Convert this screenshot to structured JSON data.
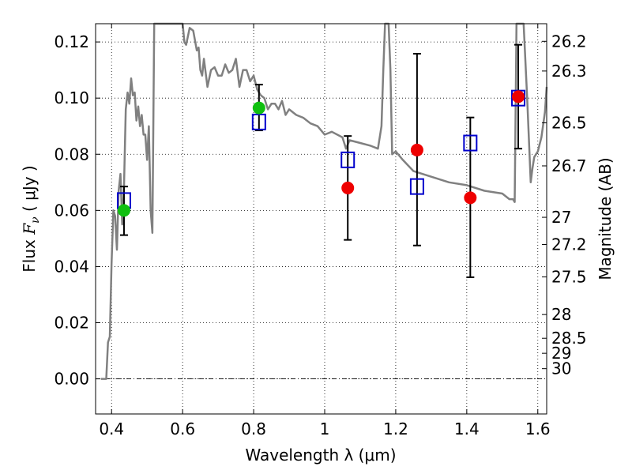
{
  "chart_data": {
    "type": "scatter",
    "xlabel": "Wavelength  λ (μm)",
    "ylabel_prefix": "Flux  ",
    "ylabel_var": "F",
    "ylabel_sub": "ν",
    "ylabel_suffix": "  ( μJy )",
    "ylabel_right": "Magnitude (AB)",
    "xlim": [
      0.355,
      1.625
    ],
    "ylim": [
      -0.0125,
      0.1265
    ],
    "grid": true,
    "x_ticks": [
      {
        "v": 0.4,
        "label": "0.4"
      },
      {
        "v": 0.6,
        "label": "0.6"
      },
      {
        "v": 0.8,
        "label": "0.8"
      },
      {
        "v": 1.0,
        "label": "1"
      },
      {
        "v": 1.2,
        "label": "1.2"
      },
      {
        "v": 1.4,
        "label": "1.4"
      },
      {
        "v": 1.6,
        "label": "1.6"
      }
    ],
    "y_ticks": [
      {
        "v": 0.0,
        "label": "0.00"
      },
      {
        "v": 0.02,
        "label": "0.02"
      },
      {
        "v": 0.04,
        "label": "0.04"
      },
      {
        "v": 0.06,
        "label": "0.06"
      },
      {
        "v": 0.08,
        "label": "0.08"
      },
      {
        "v": 0.1,
        "label": "0.10"
      },
      {
        "v": 0.12,
        "label": "0.12"
      }
    ],
    "mag_ticks": [
      {
        "v": 26.2,
        "label": "26.2"
      },
      {
        "v": 26.3,
        "label": "26.3"
      },
      {
        "v": 26.5,
        "label": "26.5"
      },
      {
        "v": 26.7,
        "label": "26.7"
      },
      {
        "v": 27,
        "label": "27"
      },
      {
        "v": 27.2,
        "label": "27.2"
      },
      {
        "v": 27.5,
        "label": "27.5"
      },
      {
        "v": 28,
        "label": "28"
      },
      {
        "v": 28.5,
        "label": "28.5"
      },
      {
        "v": 29,
        "label": "29"
      },
      {
        "v": 30,
        "label": "30"
      }
    ],
    "model_spectrum": {
      "color": "#808080",
      "x": [
        0.37,
        0.385,
        0.39,
        0.395,
        0.4,
        0.405,
        0.41,
        0.415,
        0.42,
        0.425,
        0.43,
        0.435,
        0.44,
        0.445,
        0.45,
        0.455,
        0.46,
        0.465,
        0.47,
        0.475,
        0.48,
        0.485,
        0.49,
        0.495,
        0.5,
        0.505,
        0.51,
        0.515,
        0.52,
        0.53,
        0.54,
        0.55,
        0.56,
        0.57,
        0.58,
        0.59,
        0.6,
        0.605,
        0.61,
        0.62,
        0.63,
        0.64,
        0.645,
        0.65,
        0.655,
        0.66,
        0.67,
        0.68,
        0.69,
        0.7,
        0.71,
        0.72,
        0.73,
        0.74,
        0.75,
        0.76,
        0.77,
        0.78,
        0.79,
        0.8,
        0.81,
        0.82,
        0.83,
        0.84,
        0.85,
        0.86,
        0.87,
        0.88,
        0.89,
        0.9,
        0.92,
        0.94,
        0.96,
        0.98,
        1.0,
        1.02,
        1.05,
        1.06,
        1.07,
        1.1,
        1.13,
        1.15,
        1.16,
        1.165,
        1.17,
        1.175,
        1.18,
        1.185,
        1.19,
        1.2,
        1.22,
        1.25,
        1.3,
        1.35,
        1.4,
        1.45,
        1.5,
        1.52,
        1.53,
        1.535,
        1.54,
        1.55,
        1.56,
        1.57,
        1.58,
        1.585,
        1.59,
        1.6,
        1.61,
        1.62,
        1.625
      ],
      "y": [
        0.0,
        0.0,
        0.013,
        0.015,
        0.041,
        0.06,
        0.058,
        0.046,
        0.067,
        0.073,
        0.055,
        0.069,
        0.096,
        0.102,
        0.098,
        0.107,
        0.101,
        0.102,
        0.092,
        0.097,
        0.09,
        0.094,
        0.087,
        0.087,
        0.078,
        0.09,
        0.06,
        0.052,
        0.13,
        0.13,
        0.13,
        0.13,
        0.13,
        0.13,
        0.13,
        0.13,
        0.13,
        0.12,
        0.119,
        0.125,
        0.124,
        0.117,
        0.118,
        0.11,
        0.108,
        0.114,
        0.104,
        0.11,
        0.111,
        0.108,
        0.108,
        0.112,
        0.109,
        0.11,
        0.114,
        0.104,
        0.11,
        0.11,
        0.106,
        0.108,
        0.103,
        0.101,
        0.1,
        0.096,
        0.098,
        0.098,
        0.096,
        0.099,
        0.094,
        0.096,
        0.094,
        0.093,
        0.091,
        0.09,
        0.087,
        0.088,
        0.086,
        0.082,
        0.085,
        0.084,
        0.083,
        0.082,
        0.09,
        0.11,
        0.13,
        0.13,
        0.13,
        0.11,
        0.08,
        0.081,
        0.078,
        0.074,
        0.072,
        0.07,
        0.069,
        0.067,
        0.066,
        0.064,
        0.064,
        0.063,
        0.13,
        0.13,
        0.13,
        0.1,
        0.07,
        0.075,
        0.079,
        0.081,
        0.086,
        0.095,
        0.104
      ]
    },
    "series": [
      {
        "marker": "open-square",
        "color": "#0000cc",
        "x": [
          0.435,
          0.815,
          1.065,
          1.26,
          1.41,
          1.545
        ],
        "y": [
          0.0635,
          0.0915,
          0.078,
          0.0685,
          0.084,
          0.1
        ]
      },
      {
        "marker": "filled-circle",
        "color": "#10c010",
        "x": [
          0.435,
          0.815
        ],
        "y": [
          0.06,
          0.0965
        ]
      },
      {
        "marker": "filled-circle",
        "color": "#ee0000",
        "x": [
          1.065,
          1.26,
          1.41,
          1.545
        ],
        "y": [
          0.068,
          0.0815,
          0.0645,
          0.1005
        ]
      }
    ],
    "error_bars": [
      {
        "x": 0.435,
        "low": 0.0512,
        "high": 0.0685
      },
      {
        "x": 0.815,
        "low": 0.0885,
        "high": 0.1048
      },
      {
        "x": 1.065,
        "low": 0.0495,
        "high": 0.0865
      },
      {
        "x": 1.26,
        "low": 0.0475,
        "high": 0.1158
      },
      {
        "x": 1.41,
        "low": 0.0362,
        "high": 0.0931
      },
      {
        "x": 1.545,
        "low": 0.082,
        "high": 0.119
      }
    ]
  }
}
